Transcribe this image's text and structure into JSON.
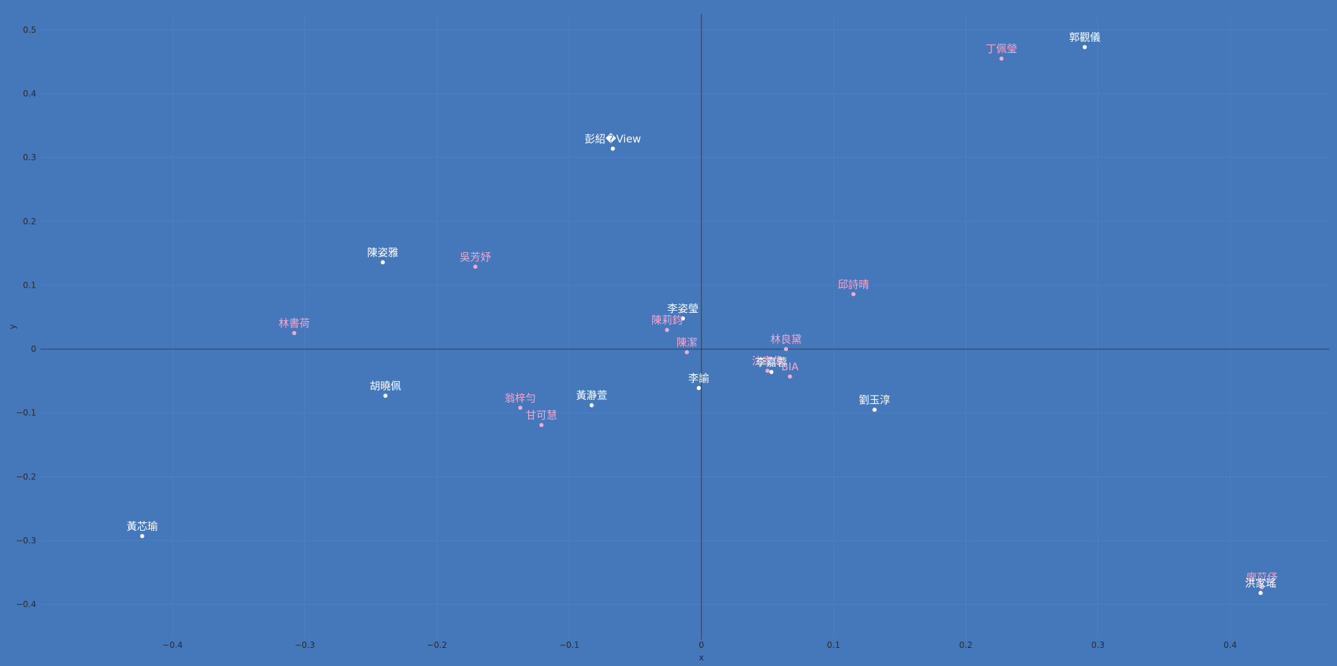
{
  "chart_data": {
    "type": "scatter",
    "title": "",
    "xlabel": "x",
    "ylabel": "y",
    "xlim": [
      -0.5,
      0.475
    ],
    "ylim": [
      -0.455,
      0.525
    ],
    "grid": true,
    "x_ticks": [
      -0.4,
      -0.3,
      -0.2,
      -0.1,
      0,
      0.1,
      0.2,
      0.3,
      0.4
    ],
    "y_ticks": [
      -0.4,
      -0.3,
      -0.2,
      -0.1,
      0,
      0.1,
      0.2,
      0.3,
      0.4,
      0.5
    ],
    "x_tick_labels": [
      "−0.4",
      "−0.3",
      "−0.2",
      "−0.1",
      "0",
      "0.1",
      "0.2",
      "0.3",
      "0.4"
    ],
    "y_tick_labels": [
      "−0.4",
      "−0.3",
      "−0.2",
      "−0.1",
      "0",
      "0.1",
      "0.2",
      "0.3",
      "0.4",
      "0.5"
    ],
    "colors": {
      "background": "#4577bb",
      "white": "#ffffff",
      "pink": "#f1a8d2",
      "axis_line": "#2f3e52",
      "grid": "#4d80c2"
    },
    "points": [
      {
        "label": "郭觀儀",
        "x": 0.29,
        "y": 0.473,
        "color": "white"
      },
      {
        "label": "丁佩瑩",
        "x": 0.227,
        "y": 0.455,
        "color": "pink"
      },
      {
        "label": "彭紹�View",
        "x": -0.067,
        "y": 0.314,
        "color": "white"
      },
      {
        "label": "陳姿雅",
        "x": -0.241,
        "y": 0.136,
        "color": "white"
      },
      {
        "label": "吳芳妤",
        "x": -0.171,
        "y": 0.129,
        "color": "pink"
      },
      {
        "label": "邱詩晴",
        "x": 0.115,
        "y": 0.086,
        "color": "pink"
      },
      {
        "label": "李姿瑩",
        "x": -0.014,
        "y": 0.048,
        "color": "white"
      },
      {
        "label": "陳莉鈞",
        "x": -0.026,
        "y": 0.03,
        "color": "pink"
      },
      {
        "label": "林書荷",
        "x": -0.308,
        "y": 0.025,
        "color": "pink"
      },
      {
        "label": "陳潔",
        "x": -0.011,
        "y": -0.005,
        "color": "pink"
      },
      {
        "label": "林良黛",
        "x": 0.064,
        "y": 0.0,
        "color": "pink"
      },
      {
        "label": "沈家偉",
        "x": 0.05,
        "y": -0.034,
        "color": "pink"
      },
      {
        "label": "李嘉蓉",
        "x": 0.053,
        "y": -0.036,
        "color": "white"
      },
      {
        "label": "BIA",
        "x": 0.067,
        "y": -0.043,
        "color": "pink"
      },
      {
        "label": "李諭",
        "x": -0.002,
        "y": -0.061,
        "color": "white"
      },
      {
        "label": "胡曉佩",
        "x": -0.239,
        "y": -0.073,
        "color": "white"
      },
      {
        "label": "黃瀞萱",
        "x": -0.083,
        "y": -0.088,
        "color": "white"
      },
      {
        "label": "翁梓勻",
        "x": -0.137,
        "y": -0.092,
        "color": "pink"
      },
      {
        "label": "劉玉淳",
        "x": 0.131,
        "y": -0.095,
        "color": "white"
      },
      {
        "label": "甘可慧",
        "x": -0.121,
        "y": -0.119,
        "color": "pink"
      },
      {
        "label": "黃芯瑜",
        "x": -0.423,
        "y": -0.293,
        "color": "white"
      },
      {
        "label": "廖苡伃",
        "x": 0.424,
        "y": -0.373,
        "color": "pink"
      },
      {
        "label": "洪家瑤",
        "x": 0.423,
        "y": -0.382,
        "color": "white"
      }
    ]
  }
}
